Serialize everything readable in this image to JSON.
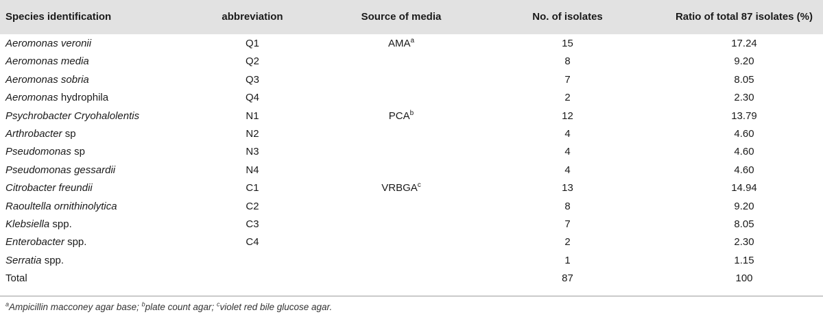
{
  "headers": [
    "Species identification",
    "abbreviation",
    "Source of media",
    "No. of isolates",
    "Ratio of total 87 isolates (%)"
  ],
  "rows": [
    {
      "genus": "Aeromonas",
      "species": "veronii",
      "species_italic": true,
      "abbr": "Q1",
      "media": "AMA",
      "media_sup": "a",
      "count": "15",
      "ratio": "17.24"
    },
    {
      "genus": "Aeromonas",
      "species": "media",
      "species_italic": true,
      "abbr": "Q2",
      "media": "",
      "media_sup": "",
      "count": "8",
      "ratio": "9.20"
    },
    {
      "genus": "Aeromonas",
      "species": "sobria",
      "species_italic": true,
      "abbr": "Q3",
      "media": "",
      "media_sup": "",
      "count": "7",
      "ratio": "8.05"
    },
    {
      "genus": "Aeromonas",
      "species": "hydrophila",
      "species_italic": false,
      "abbr": "Q4",
      "media": "",
      "media_sup": "",
      "count": "2",
      "ratio": "2.30"
    },
    {
      "genus": "Psychrobacter",
      "species": "Cryohalolentis",
      "species_italic": true,
      "abbr": "N1",
      "media": "PCA",
      "media_sup": "b",
      "count": "12",
      "ratio": "13.79"
    },
    {
      "genus": "Arthrobacter",
      "species": "sp",
      "species_italic": false,
      "abbr": "N2",
      "media": "",
      "media_sup": "",
      "count": "4",
      "ratio": "4.60"
    },
    {
      "genus": "Pseudomonas",
      "species": "sp",
      "species_italic": false,
      "abbr": "N3",
      "media": "",
      "media_sup": "",
      "count": "4",
      "ratio": "4.60"
    },
    {
      "genus": "Pseudomonas",
      "species": "gessardii",
      "species_italic": true,
      "abbr": "N4",
      "media": "",
      "media_sup": "",
      "count": "4",
      "ratio": "4.60"
    },
    {
      "genus": "Citrobacter",
      "species": "freundii",
      "species_italic": true,
      "abbr": "C1",
      "media": "VRBGA",
      "media_sup": "c",
      "count": "13",
      "ratio": "14.94"
    },
    {
      "genus": "Raoultella",
      "species": "ornithinolytica",
      "species_italic": true,
      "abbr": "C2",
      "media": "",
      "media_sup": "",
      "count": "8",
      "ratio": "9.20"
    },
    {
      "genus": "Klebsiella",
      "species": "spp.",
      "species_italic": false,
      "abbr": "C3",
      "media": "",
      "media_sup": "",
      "count": "7",
      "ratio": "8.05"
    },
    {
      "genus": "Enterobacter",
      "species": "spp.",
      "species_italic": false,
      "abbr": "C4",
      "media": "",
      "media_sup": "",
      "count": "2",
      "ratio": "2.30"
    },
    {
      "genus": "Serratia",
      "species": "spp.",
      "species_italic": false,
      "abbr": "",
      "media": "",
      "media_sup": "",
      "count": "1",
      "ratio": "1.15"
    }
  ],
  "total": {
    "label": "Total",
    "count": "87",
    "ratio": "100"
  },
  "footnote": [
    {
      "sup": "a",
      "text": "Ampicillin macconey agar base; "
    },
    {
      "sup": "b",
      "text": "plate count agar; "
    },
    {
      "sup": "c",
      "text": "violet red bile glucose agar."
    }
  ]
}
